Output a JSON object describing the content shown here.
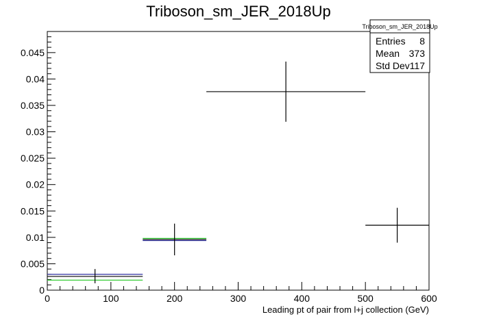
{
  "chart_data": {
    "type": "scatter",
    "title": "Triboson_sm_JER_2018Up",
    "xlabel": "Leading pt of pair from l+j collection (GeV)",
    "ylabel": "",
    "xlim": [
      0,
      600
    ],
    "ylim": [
      0,
      0.049
    ],
    "x_ticks": [
      0,
      100,
      200,
      300,
      400,
      500,
      600
    ],
    "x_tick_labels": [
      "0",
      "100",
      "200",
      "300",
      "400",
      "500",
      "600"
    ],
    "y_ticks": [
      0,
      0.005,
      0.01,
      0.015,
      0.02,
      0.025,
      0.03,
      0.035,
      0.04,
      0.045
    ],
    "y_tick_labels": [
      "0",
      "0.005",
      "0.01",
      "0.015",
      "0.02",
      "0.025",
      "0.03",
      "0.035",
      "0.04",
      "0.045"
    ],
    "grid": false,
    "series": [
      {
        "style": "error-bars",
        "color": "#000000",
        "points": [
          {
            "x": 75,
            "xlow": 0,
            "xhigh": 150,
            "y": 0.0026,
            "ylow": 0.0013,
            "yhigh": 0.004
          },
          {
            "x": 200,
            "xlow": 150,
            "xhigh": 250,
            "y": 0.0096,
            "ylow": 0.0066,
            "yhigh": 0.0126
          },
          {
            "x": 375,
            "xlow": 250,
            "xhigh": 500,
            "y": 0.0376,
            "ylow": 0.0319,
            "yhigh": 0.0433
          },
          {
            "x": 550,
            "xlow": 500,
            "xhigh": 600,
            "y": 0.0123,
            "ylow": 0.009,
            "yhigh": 0.0156
          }
        ]
      },
      {
        "style": "horizontal-segments",
        "color": "#2e2e9e",
        "points": [
          {
            "xlow": 0,
            "xhigh": 150,
            "y": 0.003
          },
          {
            "xlow": 150,
            "xhigh": 250,
            "y": 0.0094
          }
        ]
      },
      {
        "style": "horizontal-segments",
        "color": "#33cc33",
        "points": [
          {
            "xlow": 0,
            "xhigh": 150,
            "y": 0.0019
          },
          {
            "xlow": 150,
            "xhigh": 250,
            "y": 0.0098
          }
        ]
      }
    ],
    "legend": {
      "position": "top-right",
      "title": "Triboson_sm_JER_2018Up",
      "rows": [
        {
          "label": "Entries",
          "value": "8"
        },
        {
          "label": "Mean",
          "value": "373"
        },
        {
          "label": "Std Dev",
          "value": "117"
        }
      ]
    }
  }
}
